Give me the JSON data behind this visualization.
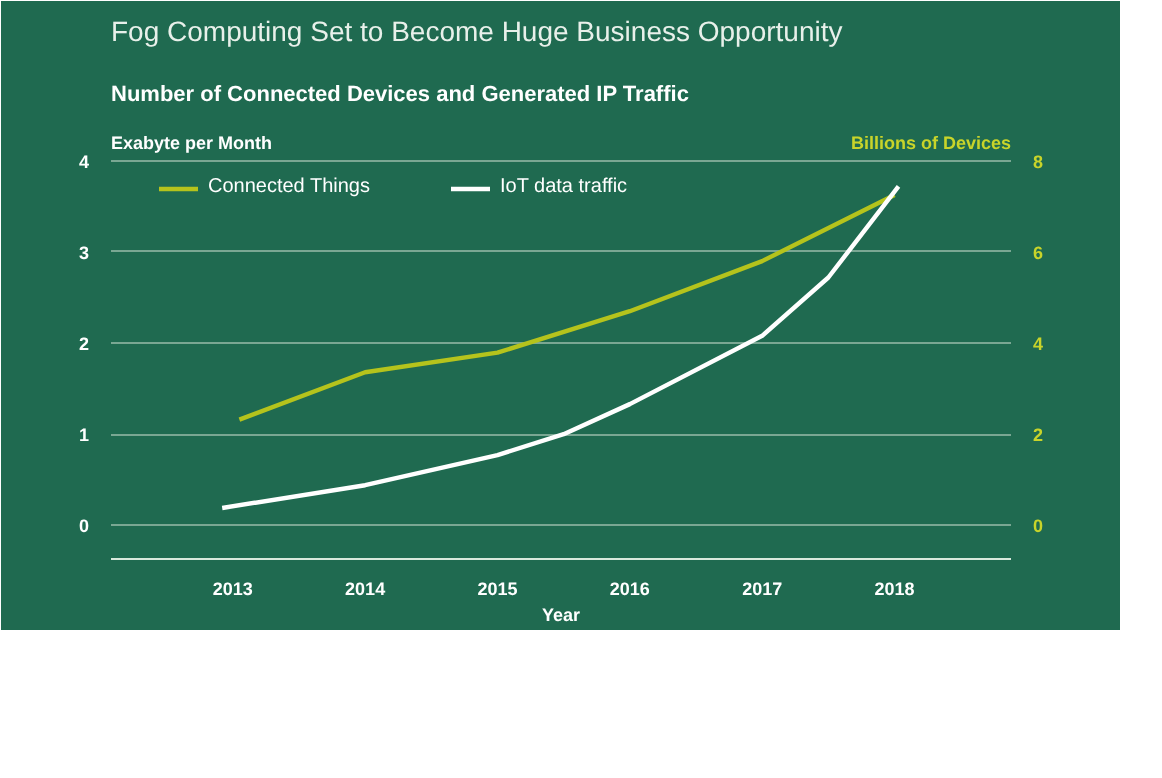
{
  "chart_data": {
    "type": "line",
    "title": "Fog Computing Set to Become Huge Business Opportunity",
    "subtitle": "Number of Connected Devices and Generated IP Traffic",
    "xlabel": "Year",
    "ylabel": "Exabyte per Month",
    "y2label": "Billions of Devices",
    "xlim": [
      2012.08,
      2018.88
    ],
    "xticks": [
      2013,
      2014,
      2015,
      2016,
      2017,
      2018
    ],
    "ylim": [
      -0.37,
      4.35
    ],
    "yticks": [
      0,
      1,
      2,
      3,
      4
    ],
    "y2lim": [
      -0.74,
      8.7
    ],
    "y2ticks": [
      0,
      2,
      4,
      6,
      8
    ],
    "grid": "y",
    "legend": "top left",
    "marker": "none",
    "line_style": "solid",
    "series": [
      {
        "name": "Connected Things",
        "color": "#b5c31c",
        "axis": "y2",
        "x": [
          2013.05,
          2014,
          2015,
          2016,
          2017,
          2018
        ],
        "values": [
          2.32,
          3.36,
          3.79,
          4.7,
          5.8,
          7.25
        ]
      },
      {
        "name": "IoT data traffic",
        "color": "#ffffff",
        "x": [
          2012.92,
          2014,
          2015,
          2015.5,
          2016,
          2017,
          2017.5,
          2018.03
        ],
        "values": [
          0.19,
          0.44,
          0.77,
          1.0,
          1.33,
          2.08,
          2.72,
          3.72
        ]
      }
    ]
  }
}
